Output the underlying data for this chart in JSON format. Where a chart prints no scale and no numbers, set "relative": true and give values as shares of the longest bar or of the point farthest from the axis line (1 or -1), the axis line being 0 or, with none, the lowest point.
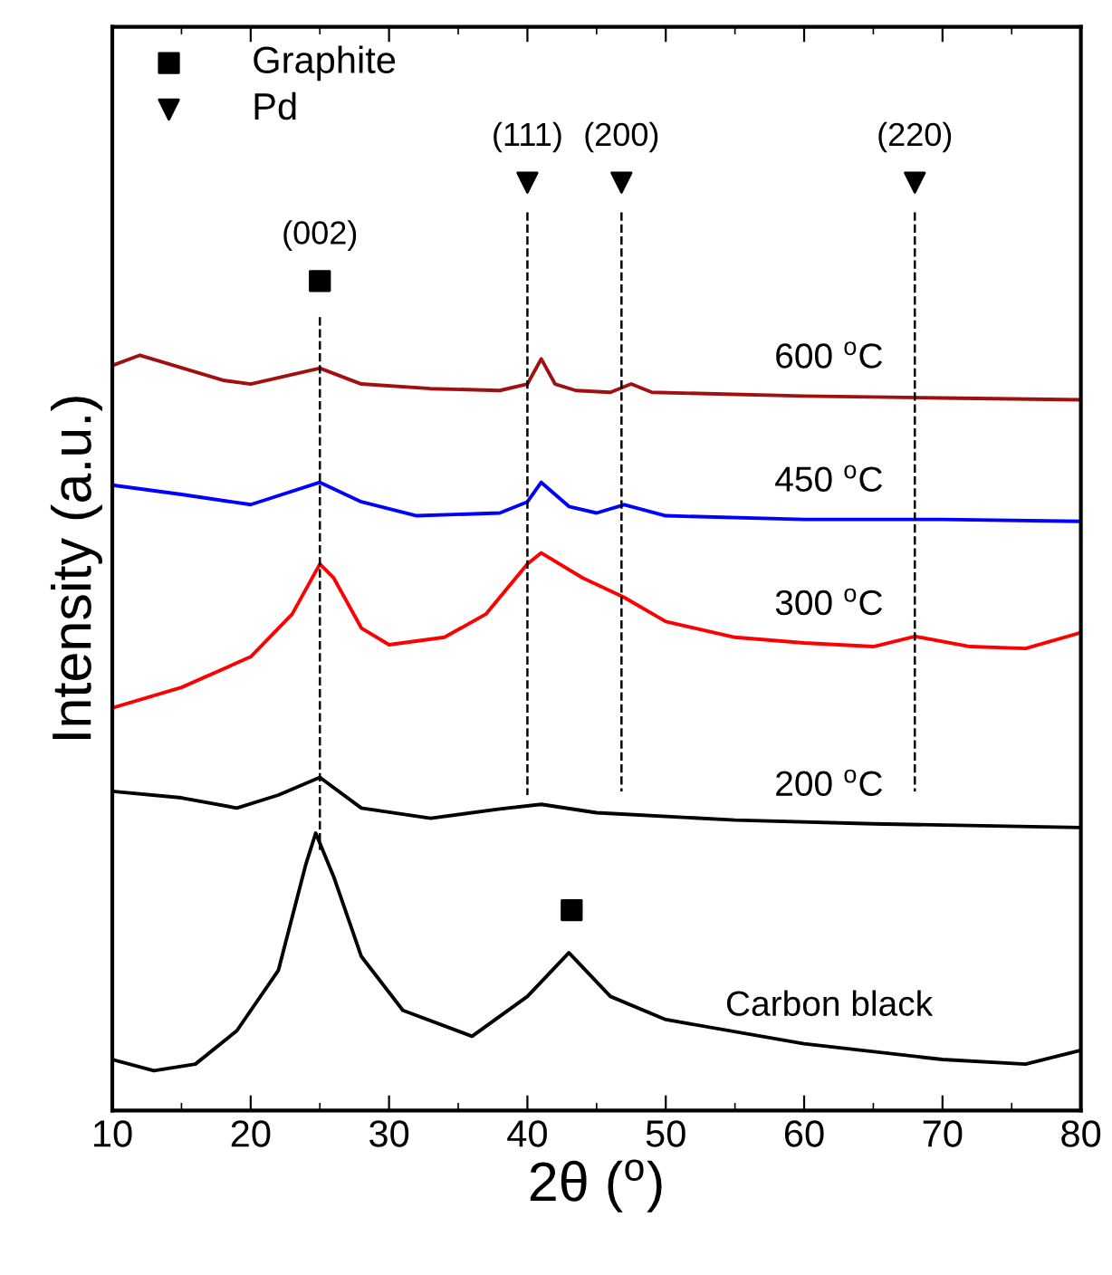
{
  "chart_data": {
    "type": "line",
    "relative": true,
    "xlabel": "2θ ($^{o}$)",
    "ylabel": "Intensity (a.u.)",
    "xlim": [
      10,
      80
    ],
    "xticks": [
      10,
      20,
      30,
      40,
      50,
      60,
      70,
      80
    ],
    "tick_labels": "x",
    "grid": false,
    "legend": "top left",
    "series": [
      {
        "name": "600 $^{o}$C",
        "color": "#a01010",
        "x": [
          10,
          12,
          18,
          20,
          25,
          28,
          33,
          38,
          40,
          41,
          42,
          43.5,
          46,
          47.5,
          49,
          60,
          70,
          80
        ],
        "values": [
          0.803,
          0.814,
          0.787,
          0.783,
          0.8,
          0.783,
          0.778,
          0.776,
          0.783,
          0.81,
          0.783,
          0.776,
          0.774,
          0.783,
          0.774,
          0.77,
          0.768,
          0.766
        ]
      },
      {
        "name": "450 $^{o}$C",
        "color": "#0000ff",
        "x": [
          10,
          15,
          20,
          25,
          28,
          32,
          38,
          40,
          41,
          43,
          45,
          47,
          50,
          60,
          70,
          80
        ],
        "values": [
          0.674,
          0.664,
          0.653,
          0.677,
          0.656,
          0.641,
          0.644,
          0.656,
          0.677,
          0.651,
          0.644,
          0.653,
          0.641,
          0.637,
          0.637,
          0.635
        ]
      },
      {
        "name": "300 $^{o}$C",
        "color": "#ff0000",
        "x": [
          10,
          15,
          20,
          23,
          25,
          26,
          28,
          30,
          34,
          37,
          40,
          41,
          44,
          47,
          50,
          55,
          60,
          65,
          68,
          72,
          76,
          80
        ],
        "values": [
          0.434,
          0.456,
          0.489,
          0.535,
          0.589,
          0.574,
          0.52,
          0.502,
          0.51,
          0.535,
          0.589,
          0.601,
          0.574,
          0.553,
          0.527,
          0.51,
          0.504,
          0.5,
          0.511,
          0.5,
          0.498,
          0.515
        ]
      },
      {
        "name": "200 $^{o}$C",
        "color": "#000000",
        "x": [
          10,
          15,
          19,
          22,
          25,
          28,
          33,
          38,
          41,
          45,
          55,
          65,
          80
        ],
        "values": [
          0.344,
          0.337,
          0.326,
          0.34,
          0.359,
          0.326,
          0.315,
          0.325,
          0.33,
          0.321,
          0.313,
          0.309,
          0.305
        ]
      },
      {
        "name": "Carbon black",
        "color": "#000000",
        "x": [
          10,
          13,
          16,
          19,
          22,
          24,
          24.7,
          26,
          28,
          31,
          36,
          40,
          43,
          46,
          50,
          60,
          70,
          76,
          80
        ],
        "values": [
          0.055,
          0.043,
          0.05,
          0.086,
          0.151,
          0.266,
          0.299,
          0.252,
          0.166,
          0.108,
          0.08,
          0.123,
          0.17,
          0.123,
          0.098,
          0.072,
          0.055,
          0.05,
          0.065
        ]
      },
      {
        "color": "#000000",
        "line_style": "dashed",
        "x": [
          25,
          25
        ],
        "values": [
          0.855,
          0.281
        ]
      },
      {
        "color": "#000000",
        "line_style": "dashed",
        "x": [
          40,
          40
        ],
        "values": [
          0.968,
          0.34
        ]
      },
      {
        "color": "#000000",
        "line_style": "dashed",
        "x": [
          46.8,
          46.8
        ],
        "values": [
          0.968,
          0.344
        ]
      },
      {
        "color": "#000000",
        "line_style": "dashed",
        "x": [
          68,
          68
        ],
        "values": [
          0.968,
          0.344
        ]
      },
      {
        "type": "scatter",
        "name": "Graphite",
        "marker": "square",
        "color": "#000000",
        "x": [
          25,
          43.2
        ],
        "values": [
          0.894,
          0.216
        ]
      },
      {
        "type": "scatter",
        "name": "Pd",
        "marker": "triangle",
        "color": "#000000",
        "x": [
          40,
          46.8,
          68
        ],
        "values": [
          1.0,
          1.0,
          1.0
        ]
      }
    ],
    "annotations": [
      {
        "text": "(002)",
        "x": 25,
        "y": 0.894
      },
      {
        "text": "(111)",
        "x": 40,
        "y": 1.0
      },
      {
        "text": "(200)",
        "x": 46.8,
        "y": 1.0
      },
      {
        "text": "(220)",
        "x": 68,
        "y": 1.0
      }
    ]
  }
}
